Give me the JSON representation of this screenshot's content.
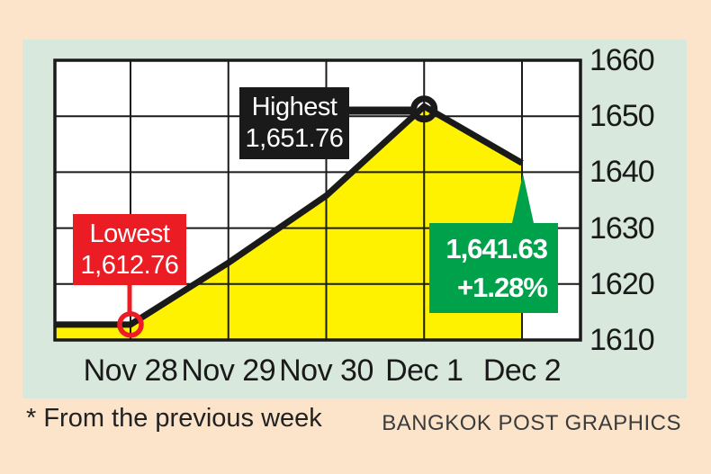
{
  "colors": {
    "background": "#FBE4CA",
    "panel": "#D9E8DC",
    "plot_bg": "#FFFFFF",
    "grid": "#1A1A1A",
    "line": "#1A1A1A",
    "area": "#FFF200",
    "lowest_accent": "#EC1C24",
    "highest_accent": "#1A1A1A",
    "close_accent": "#00A14B",
    "label_text": "#FFFFFF"
  },
  "chart_data": {
    "type": "area",
    "title": "",
    "x": [
      "Nov 28",
      "Nov 29",
      "Nov 30",
      "Dec 1",
      "Dec 2"
    ],
    "values": [
      1612.76,
      1623.8,
      1635.8,
      1651.76,
      1641.63
    ],
    "estimated_points": [
      "Nov 29",
      "Nov 30"
    ],
    "start_value": 1612.76,
    "line_starts_at_left_edge": true,
    "ylim": [
      1610,
      1660
    ],
    "yticks": [
      1660,
      1650,
      1640,
      1630,
      1620,
      1610
    ],
    "grid": true,
    "legend": "none",
    "annotations": {
      "lowest": {
        "label": "Lowest",
        "value": "1,612.76",
        "at_x": "Nov 28"
      },
      "highest": {
        "label": "Highest",
        "value": "1,651.76",
        "at_x": "Dec 1"
      },
      "close": {
        "value": "1,641.63",
        "change": "+1.28%",
        "at_x": "Dec 2"
      }
    }
  },
  "footer": {
    "note": "* From the previous week",
    "credit": "BANGKOK POST GRAPHICS"
  }
}
